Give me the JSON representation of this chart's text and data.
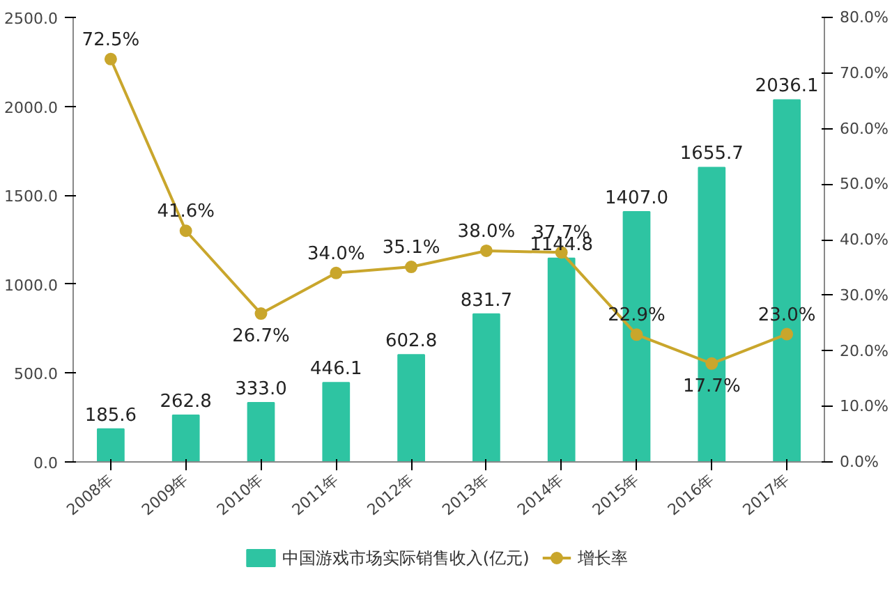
{
  "chart_data": {
    "type": "bar",
    "categories": [
      "2008年",
      "2009年",
      "2010年",
      "2011年",
      "2012年",
      "2013年",
      "2014年",
      "2015年",
      "2016年",
      "2017年"
    ],
    "series": [
      {
        "name": "中国游戏市场实际销售收入(亿元)",
        "color": "#2ec4a2",
        "values": [
          185.6,
          262.8,
          333.0,
          446.1,
          602.8,
          831.7,
          1144.8,
          1407.0,
          1655.7,
          2036.1
        ],
        "value_labels": [
          "185.6",
          "262.8",
          "333.0",
          "446.1",
          "602.8",
          "831.7",
          "1144.8",
          "1407.0",
          "1655.7",
          "2036.1"
        ]
      },
      {
        "name": "增长率",
        "type": "line",
        "axis": "y2",
        "color": "#c9a62c",
        "values": [
          72.5,
          41.6,
          26.7,
          34.0,
          35.1,
          38.0,
          37.7,
          22.9,
          17.7,
          23.0
        ],
        "value_labels": [
          "72.5%",
          "41.6%",
          "26.7%",
          "34.0%",
          "35.1%",
          "38.0%",
          "37.7%",
          "22.9%",
          "17.7%",
          "23.0%"
        ]
      }
    ],
    "ylim": [
      0,
      2500
    ],
    "yticks": [
      {
        "value": 0,
        "label": "0.0"
      },
      {
        "value": 500,
        "label": "500.0"
      },
      {
        "value": 1000,
        "label": "1000.0"
      },
      {
        "value": 1500,
        "label": "1500.0"
      },
      {
        "value": 2000,
        "label": "2000.0"
      },
      {
        "value": 2500,
        "label": "2500.0"
      }
    ],
    "y2lim": [
      0,
      80
    ],
    "y2ticks": [
      {
        "value": 0,
        "label": "0.0%"
      },
      {
        "value": 10,
        "label": "10.0%"
      },
      {
        "value": 20,
        "label": "20.0%"
      },
      {
        "value": 30,
        "label": "30.0%"
      },
      {
        "value": 40,
        "label": "40.0%"
      },
      {
        "value": 50,
        "label": "50.0%"
      },
      {
        "value": 60,
        "label": "60.0%"
      },
      {
        "value": 70,
        "label": "70.0%"
      },
      {
        "value": 80,
        "label": "80.0%"
      }
    ],
    "marker": "circle",
    "legend": "bottom",
    "grid": false
  }
}
